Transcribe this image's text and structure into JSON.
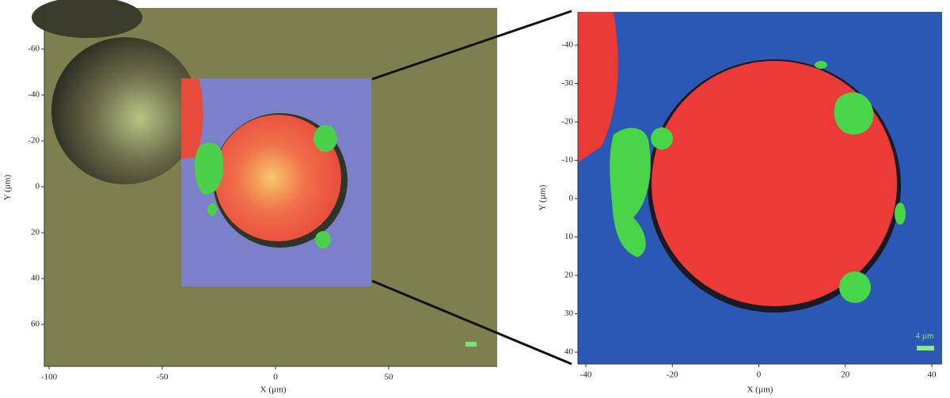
{
  "left_panel": {
    "x_ticks": [
      "-100",
      "-50",
      "0",
      "50"
    ],
    "y_ticks": [
      "-60",
      "-40",
      "-20",
      "0",
      "20",
      "40",
      "60"
    ],
    "x_label": "X (µm)",
    "y_label": "Y (µm)"
  },
  "right_panel": {
    "x_ticks": [
      "-40",
      "-20",
      "0",
      "20",
      "40"
    ],
    "y_ticks": [
      "-40",
      "-30",
      "-20",
      "-10",
      "0",
      "10",
      "20",
      "30",
      "40"
    ],
    "x_label": "X (µm)",
    "y_label": "Y (µm)",
    "scale_bar": "4 µm"
  }
}
